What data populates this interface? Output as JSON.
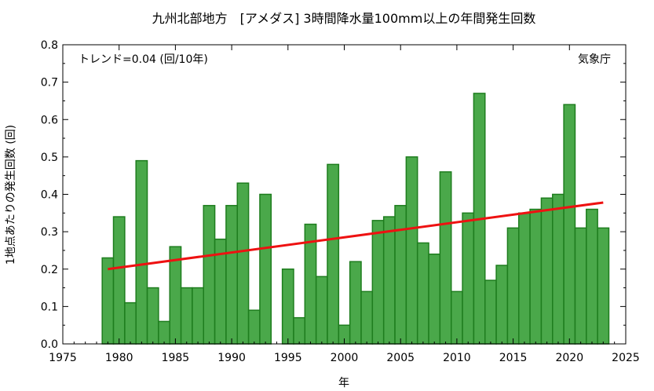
{
  "chart_data": {
    "type": "bar",
    "title": "九州北部地方　[アメダス] 3時間降水量100mm以上の年間発生回数",
    "xlabel": "年",
    "ylabel": "1地点あたりの発生回数 (回)",
    "trend_label": "トレンド=0.04 (回/10年)",
    "source_label": "気象庁",
    "xlim": [
      1975,
      2025
    ],
    "ylim": [
      0,
      0.8
    ],
    "x_ticks": [
      1975,
      1980,
      1985,
      1990,
      1995,
      2000,
      2005,
      2010,
      2015,
      2020,
      2025
    ],
    "y_ticks": [
      "0.0",
      "0.1",
      "0.2",
      "0.3",
      "0.4",
      "0.5",
      "0.6",
      "0.7",
      "0.8"
    ],
    "years": [
      1979,
      1980,
      1981,
      1982,
      1983,
      1984,
      1985,
      1986,
      1987,
      1988,
      1989,
      1990,
      1991,
      1992,
      1993,
      1994,
      1995,
      1996,
      1997,
      1998,
      1999,
      2000,
      2001,
      2002,
      2003,
      2004,
      2005,
      2006,
      2007,
      2008,
      2009,
      2010,
      2011,
      2012,
      2013,
      2014,
      2015,
      2016,
      2017,
      2018,
      2019,
      2020,
      2021,
      2022,
      2023
    ],
    "values": [
      0.23,
      0.34,
      0.11,
      0.49,
      0.15,
      0.06,
      0.26,
      0.15,
      0.15,
      0.37,
      0.28,
      0.37,
      0.43,
      0.09,
      0.4,
      0.0,
      0.2,
      0.07,
      0.32,
      0.18,
      0.48,
      0.05,
      0.22,
      0.14,
      0.33,
      0.34,
      0.37,
      0.5,
      0.27,
      0.24,
      0.46,
      0.14,
      0.35,
      0.67,
      0.17,
      0.21,
      0.31,
      0.35,
      0.36,
      0.39,
      0.4,
      0.64,
      0.31,
      0.36,
      0.31
    ],
    "trend": {
      "x": [
        1979,
        2023
      ],
      "y": [
        0.2,
        0.378
      ]
    },
    "colors": {
      "bar_fill": "#4aa84a",
      "bar_stroke": "#1e7d1e",
      "trend": "#ee1111"
    }
  }
}
